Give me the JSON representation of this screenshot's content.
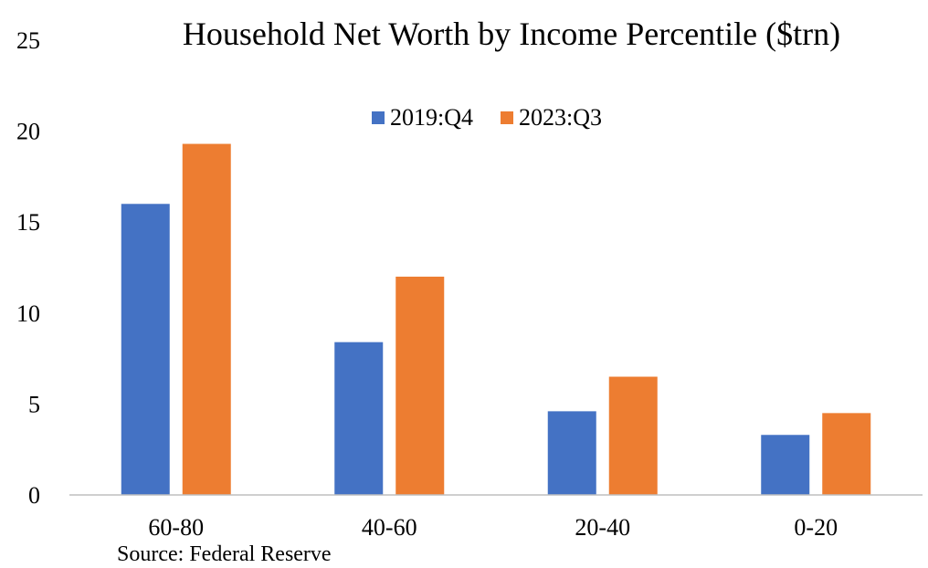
{
  "chart_data": {
    "type": "bar",
    "title": "Household Net Worth by Income Percentile ($trn)",
    "categories": [
      "60-80",
      "40-60",
      "20-40",
      "0-20"
    ],
    "series": [
      {
        "name": "2019:Q4",
        "color": "#4472C4",
        "values": [
          16.0,
          8.4,
          4.6,
          3.3
        ]
      },
      {
        "name": "2023:Q3",
        "color": "#ED7D31",
        "values": [
          19.3,
          12.0,
          6.5,
          4.5
        ]
      }
    ],
    "ylim": [
      0,
      25
    ],
    "yticks": [
      "0",
      "5",
      "10",
      "15",
      "20",
      "25"
    ],
    "xlabel": "",
    "ylabel": "",
    "grid": false,
    "legend_position": "top-center"
  },
  "source": "Source: Federal Reserve"
}
